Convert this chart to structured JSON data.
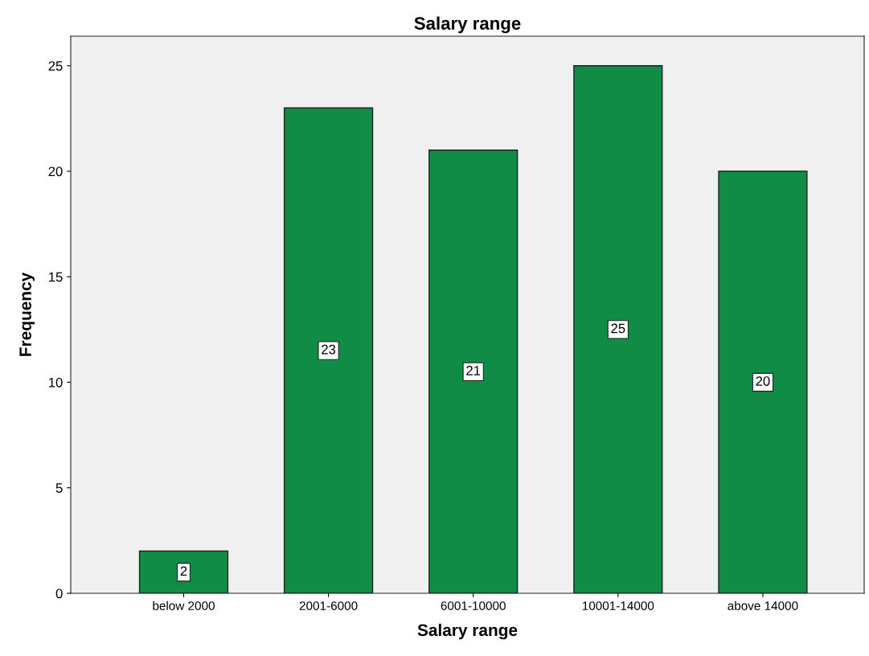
{
  "chart_data": {
    "type": "bar",
    "title": "Salary range",
    "xlabel": "Salary range",
    "ylabel": "Frequency",
    "categories": [
      "below 2000",
      "2001-6000",
      "6001-10000",
      "10001-14000",
      "above 14000"
    ],
    "values": [
      2,
      23,
      21,
      25,
      20
    ],
    "color": "#118c46",
    "ylim": [
      0,
      26.4
    ],
    "yticks": [
      0,
      5,
      10,
      15,
      20,
      25
    ],
    "grid": false,
    "data_labels": true
  }
}
